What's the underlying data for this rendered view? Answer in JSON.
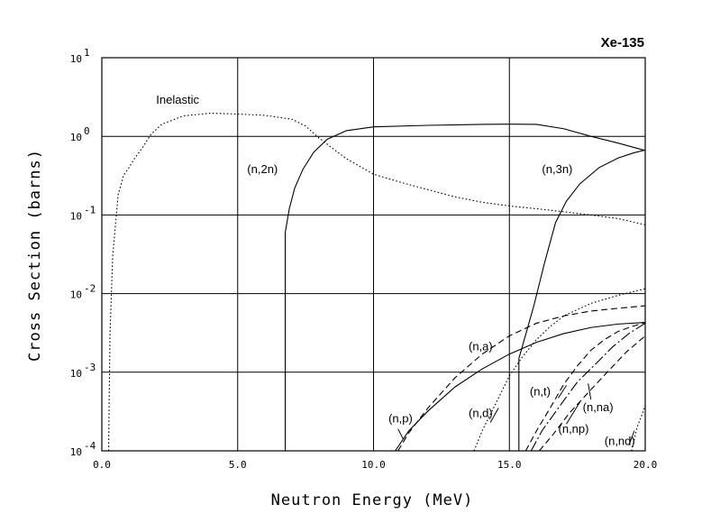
{
  "chart_data": {
    "type": "line",
    "title": "Xe-135",
    "xlabel": "Neutron Energy (MeV)",
    "ylabel": "Cross Section (barns)",
    "xlim": [
      0,
      20
    ],
    "ylim": [
      0.0001,
      10
    ],
    "yscale": "log",
    "grid": true,
    "x_ticks": [
      {
        "value": 0,
        "label": "0.0"
      },
      {
        "value": 5,
        "label": "5.0"
      },
      {
        "value": 10,
        "label": "10.0"
      },
      {
        "value": 15,
        "label": "15.0"
      },
      {
        "value": 20,
        "label": "20.0"
      }
    ],
    "y_ticks": [
      {
        "value": 10,
        "base": "10",
        "exp": "1"
      },
      {
        "value": 1,
        "base": "10",
        "exp": "0"
      },
      {
        "value": 0.1,
        "base": "10",
        "exp": "-1"
      },
      {
        "value": 0.01,
        "base": "10",
        "exp": "-2"
      },
      {
        "value": 0.001,
        "base": "10",
        "exp": "-3"
      },
      {
        "value": 0.0001,
        "base": "10",
        "exp": "-4"
      }
    ],
    "series": [
      {
        "name": "Inelastic",
        "style": "dotted",
        "label_at": {
          "x": 2.0,
          "y": 2.6
        },
        "points": [
          [
            0.25,
            0.0001
          ],
          [
            0.3,
            0.003
          ],
          [
            0.4,
            0.03
          ],
          [
            0.6,
            0.18
          ],
          [
            0.8,
            0.32
          ],
          [
            1.0,
            0.4
          ],
          [
            1.2,
            0.52
          ],
          [
            1.5,
            0.72
          ],
          [
            1.8,
            1.05
          ],
          [
            2.2,
            1.42
          ],
          [
            3.0,
            1.82
          ],
          [
            4.0,
            1.97
          ],
          [
            5.0,
            1.92
          ],
          [
            6.0,
            1.85
          ],
          [
            7.0,
            1.65
          ],
          [
            7.5,
            1.35
          ],
          [
            8.0,
            0.95
          ],
          [
            8.5,
            0.7
          ],
          [
            9.0,
            0.52
          ],
          [
            10.0,
            0.33
          ],
          [
            11.0,
            0.26
          ],
          [
            12.0,
            0.21
          ],
          [
            13.0,
            0.17
          ],
          [
            14.0,
            0.145
          ],
          [
            15.0,
            0.13
          ],
          [
            16.0,
            0.12
          ],
          [
            17.0,
            0.11
          ],
          [
            18.0,
            0.1
          ],
          [
            19.0,
            0.09
          ],
          [
            20.0,
            0.075
          ]
        ]
      },
      {
        "name": "(n,2n)",
        "style": "solid",
        "label_at": {
          "x": 5.35,
          "y": 0.34
        },
        "points": [
          [
            6.75,
            0.0001
          ],
          [
            6.75,
            0.06
          ],
          [
            6.9,
            0.12
          ],
          [
            7.1,
            0.22
          ],
          [
            7.4,
            0.38
          ],
          [
            7.8,
            0.63
          ],
          [
            8.3,
            0.92
          ],
          [
            9.0,
            1.18
          ],
          [
            10.0,
            1.32
          ],
          [
            12.0,
            1.38
          ],
          [
            14.0,
            1.42
          ],
          [
            15.0,
            1.43
          ],
          [
            16.0,
            1.42
          ],
          [
            17.0,
            1.25
          ],
          [
            18.0,
            1.0
          ],
          [
            19.0,
            0.82
          ],
          [
            20.0,
            0.66
          ]
        ]
      },
      {
        "name": "(n,3n)",
        "style": "solid",
        "label_at": {
          "x": 16.2,
          "y": 0.34
        },
        "points": [
          [
            15.35,
            0.0001
          ],
          [
            15.35,
            0.0015
          ],
          [
            15.6,
            0.003
          ],
          [
            15.9,
            0.007
          ],
          [
            16.3,
            0.025
          ],
          [
            16.7,
            0.08
          ],
          [
            17.1,
            0.15
          ],
          [
            17.6,
            0.25
          ],
          [
            18.3,
            0.4
          ],
          [
            19.0,
            0.53
          ],
          [
            19.6,
            0.62
          ],
          [
            20.0,
            0.67
          ]
        ]
      },
      {
        "name": "(n,a)",
        "style": "dashed",
        "label_at": {
          "x": 13.5,
          "y": 0.0019
        },
        "points": [
          [
            10.9,
            0.0001
          ],
          [
            11.3,
            0.00017
          ],
          [
            12.0,
            0.00035
          ],
          [
            13.0,
            0.00085
          ],
          [
            14.0,
            0.0017
          ],
          [
            15.0,
            0.0029
          ],
          [
            16.0,
            0.0042
          ],
          [
            17.0,
            0.0052
          ],
          [
            18.0,
            0.006
          ],
          [
            19.0,
            0.0065
          ],
          [
            20.0,
            0.007
          ]
        ]
      },
      {
        "name": "(n,p)",
        "style": "solid",
        "label_at": {
          "x": 10.55,
          "y": 0.00023
        },
        "points": [
          [
            10.8,
            0.0001
          ],
          [
            11.3,
            0.00018
          ],
          [
            12.0,
            0.00032
          ],
          [
            13.0,
            0.00065
          ],
          [
            14.0,
            0.0011
          ],
          [
            15.0,
            0.0017
          ],
          [
            16.0,
            0.0024
          ],
          [
            17.0,
            0.0031
          ],
          [
            18.0,
            0.0037
          ],
          [
            19.0,
            0.0041
          ],
          [
            20.0,
            0.0043
          ]
        ]
      },
      {
        "name": "(n,d)",
        "style": "dotted",
        "label_at": {
          "x": 13.5,
          "y": 0.00027
        },
        "points": [
          [
            13.7,
            0.0001
          ],
          [
            14.0,
            0.00018
          ],
          [
            14.5,
            0.0004
          ],
          [
            15.0,
            0.0009
          ],
          [
            15.5,
            0.0016
          ],
          [
            16.0,
            0.0026
          ],
          [
            16.5,
            0.0038
          ],
          [
            17.0,
            0.0052
          ],
          [
            18.0,
            0.0075
          ],
          [
            19.0,
            0.0095
          ],
          [
            20.0,
            0.0115
          ]
        ]
      },
      {
        "name": "(n,t)",
        "style": "dashed",
        "label_at": {
          "x": 15.75,
          "y": 0.00051
        },
        "points": [
          [
            15.6,
            0.0001
          ],
          [
            16.0,
            0.00018
          ],
          [
            16.5,
            0.00035
          ],
          [
            17.0,
            0.0007
          ],
          [
            17.5,
            0.0012
          ],
          [
            18.0,
            0.0019
          ],
          [
            18.5,
            0.0026
          ],
          [
            19.0,
            0.0033
          ],
          [
            19.5,
            0.0038
          ],
          [
            20.0,
            0.0043
          ]
        ]
      },
      {
        "name": "(n,na)",
        "style": "dash-dot",
        "label_at": {
          "x": 17.7,
          "y": 0.00032
        },
        "points": [
          [
            15.8,
            0.0001
          ],
          [
            16.2,
            0.00018
          ],
          [
            16.8,
            0.00035
          ],
          [
            17.5,
            0.00075
          ],
          [
            18.2,
            0.0013
          ],
          [
            18.8,
            0.0021
          ],
          [
            19.4,
            0.0031
          ],
          [
            20.0,
            0.0042
          ]
        ]
      },
      {
        "name": "(n,np)",
        "style": "dashed",
        "label_at": {
          "x": 16.8,
          "y": 0.00017
        },
        "points": [
          [
            16.1,
            0.0001
          ],
          [
            16.6,
            0.00016
          ],
          [
            17.2,
            0.0003
          ],
          [
            17.9,
            0.00055
          ],
          [
            18.6,
            0.001
          ],
          [
            19.3,
            0.0018
          ],
          [
            20.0,
            0.0029
          ]
        ]
      },
      {
        "name": "(n,nd)",
        "style": "dotted",
        "label_at": {
          "x": 18.5,
          "y": 0.000118
        },
        "points": [
          [
            19.5,
            0.0001
          ],
          [
            19.7,
            0.0002
          ],
          [
            19.9,
            0.0003
          ],
          [
            20.0,
            0.00038
          ]
        ]
      }
    ],
    "label_leaders": [
      {
        "series": "(n,p)",
        "from": [
          10.9,
          0.00019
        ],
        "to": [
          11.1,
          0.00014
        ]
      },
      {
        "series": "(n,d)",
        "from": [
          14.3,
          0.00023
        ],
        "to": [
          14.6,
          0.00035
        ]
      },
      {
        "series": "(n,t)",
        "from": [
          16.8,
          0.00047
        ],
        "to": [
          17.1,
          0.00068
        ]
      },
      {
        "series": "(n,na)",
        "from": [
          18.0,
          0.00045
        ],
        "to": [
          17.9,
          0.00072
        ]
      },
      {
        "series": "(n,np)",
        "from": [
          17.1,
          0.00022
        ],
        "to": [
          17.6,
          0.00042
        ]
      },
      {
        "series": "(n,nd)",
        "from": [
          19.4,
          0.000118
        ],
        "to": [
          19.6,
          0.00018
        ]
      }
    ]
  }
}
